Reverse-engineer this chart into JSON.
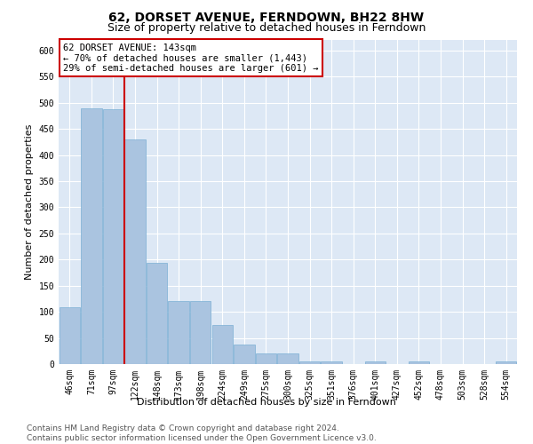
{
  "title": "62, DORSET AVENUE, FERNDOWN, BH22 8HW",
  "subtitle": "Size of property relative to detached houses in Ferndown",
  "xlabel": "Distribution of detached houses by size in Ferndown",
  "ylabel": "Number of detached properties",
  "categories": [
    "46sqm",
    "71sqm",
    "97sqm",
    "122sqm",
    "148sqm",
    "173sqm",
    "198sqm",
    "224sqm",
    "249sqm",
    "275sqm",
    "300sqm",
    "325sqm",
    "351sqm",
    "376sqm",
    "401sqm",
    "427sqm",
    "452sqm",
    "478sqm",
    "503sqm",
    "528sqm",
    "554sqm"
  ],
  "values": [
    108,
    490,
    487,
    430,
    193,
    120,
    120,
    75,
    38,
    20,
    20,
    5,
    5,
    0,
    5,
    0,
    5,
    0,
    0,
    0,
    5
  ],
  "bar_color": "#aac4e0",
  "bar_edgecolor": "#7aafd4",
  "property_line_x": 2.5,
  "property_line_color": "#cc0000",
  "annotation_line1": "62 DORSET AVENUE: 143sqm",
  "annotation_line2": "← 70% of detached houses are smaller (1,443)",
  "annotation_line3": "29% of semi-detached houses are larger (601) →",
  "annotation_box_color": "#cc0000",
  "ylim": [
    0,
    620
  ],
  "yticks": [
    0,
    50,
    100,
    150,
    200,
    250,
    300,
    350,
    400,
    450,
    500,
    550,
    600
  ],
  "footer_line1": "Contains HM Land Registry data © Crown copyright and database right 2024.",
  "footer_line2": "Contains public sector information licensed under the Open Government Licence v3.0.",
  "background_color": "#dde8f5",
  "grid_color": "#ffffff",
  "title_fontsize": 10,
  "subtitle_fontsize": 9,
  "axis_label_fontsize": 8,
  "tick_fontsize": 7,
  "footer_fontsize": 6.5,
  "annotation_fontsize": 7.5
}
